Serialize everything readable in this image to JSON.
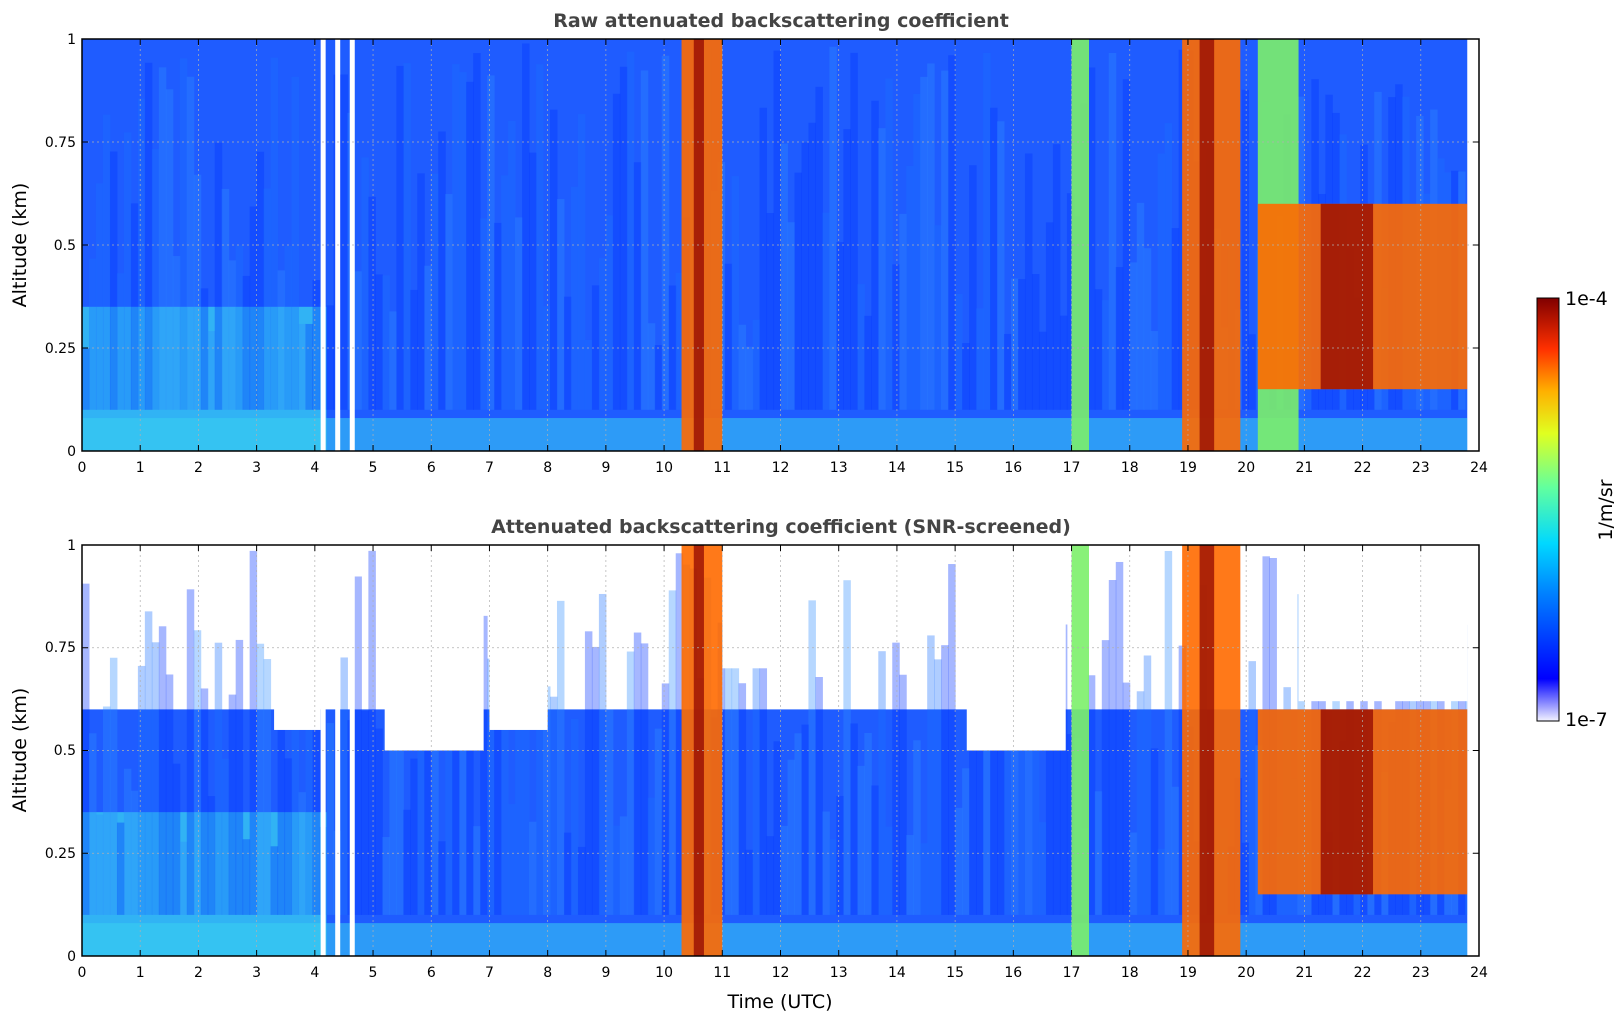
{
  "chart_data": [
    {
      "type": "heatmap",
      "title": "Raw attenuated backscattering coefficient",
      "xlabel": "",
      "ylabel": "Altitude (km)",
      "xlim": [
        0,
        24
      ],
      "ylim": [
        0,
        1
      ],
      "x_ticks": [
        "0",
        "1",
        "2",
        "3",
        "4",
        "5",
        "6",
        "7",
        "8",
        "9",
        "10",
        "11",
        "12",
        "13",
        "14",
        "15",
        "16",
        "17",
        "18",
        "19",
        "20",
        "21",
        "22",
        "23",
        "24"
      ],
      "y_ticks": [
        "0",
        "0.25",
        "0.5",
        "0.75",
        "1"
      ],
      "grid": true,
      "features": [
        {
          "name": "clear sky background",
          "x_range": [
            0,
            23.8
          ],
          "y_range": [
            0,
            1
          ],
          "level": "low"
        },
        {
          "name": "cloud column",
          "x_range": [
            10.3,
            11.0
          ],
          "y_range": [
            0,
            1
          ],
          "level": "high"
        },
        {
          "name": "cloud column",
          "x_range": [
            17.0,
            17.3
          ],
          "y_range": [
            0,
            1
          ],
          "level": "medium"
        },
        {
          "name": "cloud column",
          "x_range": [
            18.9,
            19.9
          ],
          "y_range": [
            0,
            1
          ],
          "level": "high"
        },
        {
          "name": "cloud column",
          "x_range": [
            20.2,
            20.9
          ],
          "y_range": [
            0,
            1
          ],
          "level": "medium"
        },
        {
          "name": "cloud layer",
          "x_range": [
            20.2,
            23.8
          ],
          "y_range": [
            0.15,
            0.6
          ],
          "level": "high"
        }
      ]
    },
    {
      "type": "heatmap",
      "title": "Attenuated backscattering coefficient (SNR-screened)",
      "xlabel": "Time (UTC)",
      "ylabel": "Altitude (km)",
      "xlim": [
        0,
        24
      ],
      "ylim": [
        0,
        1
      ],
      "x_ticks": [
        "0",
        "1",
        "2",
        "3",
        "4",
        "5",
        "6",
        "7",
        "8",
        "9",
        "10",
        "11",
        "12",
        "13",
        "14",
        "15",
        "16",
        "17",
        "18",
        "19",
        "20",
        "21",
        "22",
        "23",
        "24"
      ],
      "y_ticks": [
        "0",
        "0.25",
        "0.5",
        "0.75",
        "1"
      ],
      "grid": true,
      "features": [
        {
          "name": "screened background",
          "x_range": [
            0,
            23.8
          ],
          "y_range": [
            0,
            0.6
          ],
          "level": "low"
        },
        {
          "name": "cloud column",
          "x_range": [
            10.3,
            11.0
          ],
          "y_range": [
            0,
            1
          ],
          "level": "high"
        },
        {
          "name": "cloud column",
          "x_range": [
            17.0,
            17.3
          ],
          "y_range": [
            0,
            1
          ],
          "level": "medium"
        },
        {
          "name": "cloud column",
          "x_range": [
            18.9,
            19.9
          ],
          "y_range": [
            0,
            1
          ],
          "level": "high"
        },
        {
          "name": "cloud layer",
          "x_range": [
            20.2,
            23.8
          ],
          "y_range": [
            0.15,
            0.6
          ],
          "level": "high"
        }
      ]
    }
  ],
  "colorbar": {
    "label": "1/m/sr",
    "min_label": "1e-7",
    "max_label": "1e-4",
    "range": [
      1e-07,
      0.0001
    ],
    "scale": "log",
    "colormap": "jet"
  },
  "colors": {
    "low": "#1f5cff",
    "mid": "#38d0f0",
    "green": "#7cf06a",
    "high": "#ff6a00",
    "max": "#8a0000"
  }
}
